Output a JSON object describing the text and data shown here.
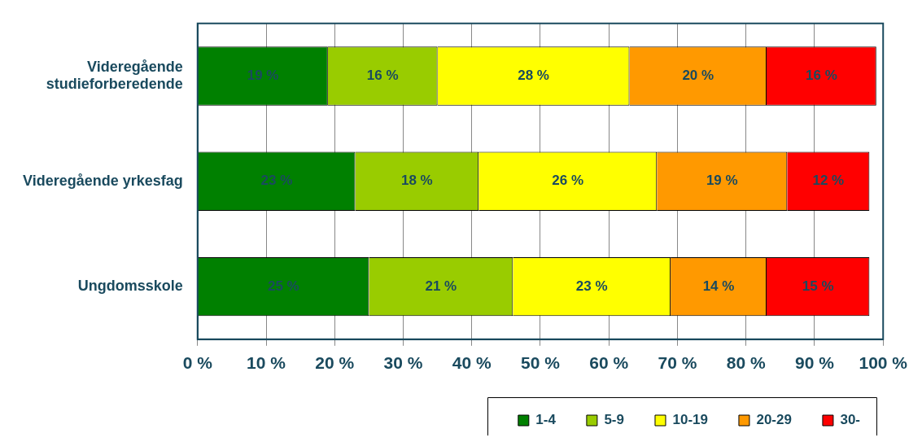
{
  "chart_data": {
    "type": "bar",
    "orientation": "horizontal",
    "stacked": true,
    "categories": [
      "Videregående studieforberedende",
      "Videregående yrkesfag",
      "Ungdomsskole"
    ],
    "series": [
      {
        "name": "1-4",
        "color": "#008000",
        "values": [
          19,
          23,
          25
        ],
        "value_labels": [
          "19 %",
          "23 %",
          "25 %"
        ]
      },
      {
        "name": "5-9",
        "color": "#99cc00",
        "values": [
          16,
          18,
          21
        ],
        "value_labels": [
          "16 %",
          "18 %",
          "21 %"
        ]
      },
      {
        "name": "10-19",
        "color": "#ffff00",
        "values": [
          28,
          26,
          23
        ],
        "value_labels": [
          "28 %",
          "26 %",
          "23 %"
        ]
      },
      {
        "name": "20-29",
        "color": "#ff9900",
        "values": [
          20,
          19,
          14
        ],
        "value_labels": [
          "20 %",
          "19 %",
          "14 %"
        ]
      },
      {
        "name": "30-",
        "color": "#ff0000",
        "values": [
          16,
          12,
          15
        ],
        "value_labels": [
          "16 %",
          "12 %",
          "15 %"
        ]
      }
    ],
    "xlim": [
      0,
      100
    ],
    "xticks": [
      {
        "value": 0,
        "label": "0 %"
      },
      {
        "value": 10,
        "label": "10 %"
      },
      {
        "value": 20,
        "label": "20 %"
      },
      {
        "value": 30,
        "label": "30 %"
      },
      {
        "value": 40,
        "label": "40 %"
      },
      {
        "value": 50,
        "label": "50 %"
      },
      {
        "value": 60,
        "label": "60 %"
      },
      {
        "value": 70,
        "label": "70 %"
      },
      {
        "value": 80,
        "label": "80 %"
      },
      {
        "value": 90,
        "label": "90 %"
      },
      {
        "value": 100,
        "label": "100 %"
      }
    ],
    "grid": "x",
    "legend": "bottom"
  }
}
